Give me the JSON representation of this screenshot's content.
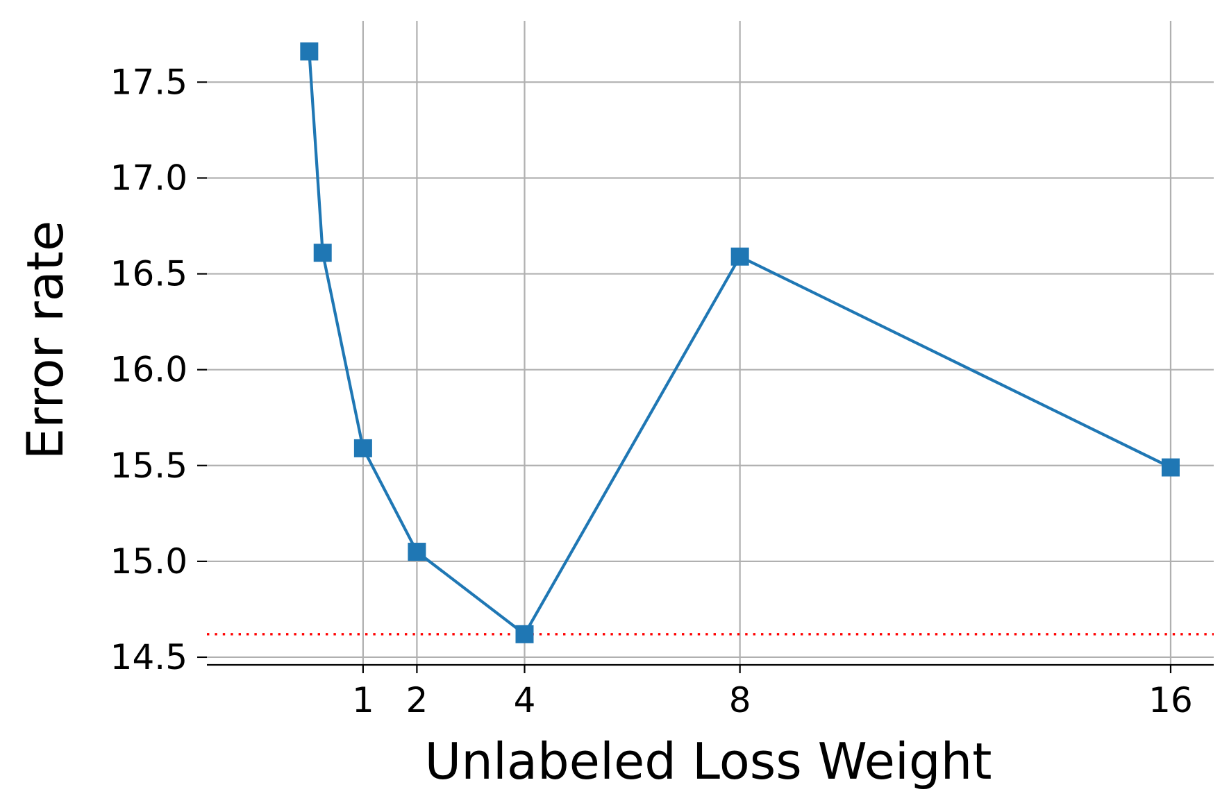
{
  "chart_data": {
    "type": "line",
    "title": "",
    "xlabel": "Unlabeled Loss Weight",
    "ylabel": "Error rate",
    "xlim": [
      -1.9,
      16.8
    ],
    "ylim": [
      14.46,
      17.82
    ],
    "x_ticks": [
      1,
      2,
      4,
      8,
      16
    ],
    "x_tick_labels": [
      "1",
      "2",
      "4",
      "8",
      "16"
    ],
    "y_ticks": [
      14.5,
      15.0,
      15.5,
      16.0,
      16.5,
      17.0,
      17.5
    ],
    "y_tick_labels": [
      "14.5",
      "15.0",
      "15.5",
      "16.0",
      "16.5",
      "17.0",
      "17.5"
    ],
    "grid": true,
    "series": [
      {
        "marker": "square",
        "color": "#1f77b4",
        "x": [
          0.0,
          0.25,
          1,
          2,
          4,
          8,
          16
        ],
        "y": [
          17.66,
          16.61,
          15.59,
          15.05,
          14.62,
          16.59,
          15.49
        ]
      }
    ],
    "reference_line": {
      "y": 14.62,
      "color": "#ff0000",
      "style": "dotted"
    }
  }
}
